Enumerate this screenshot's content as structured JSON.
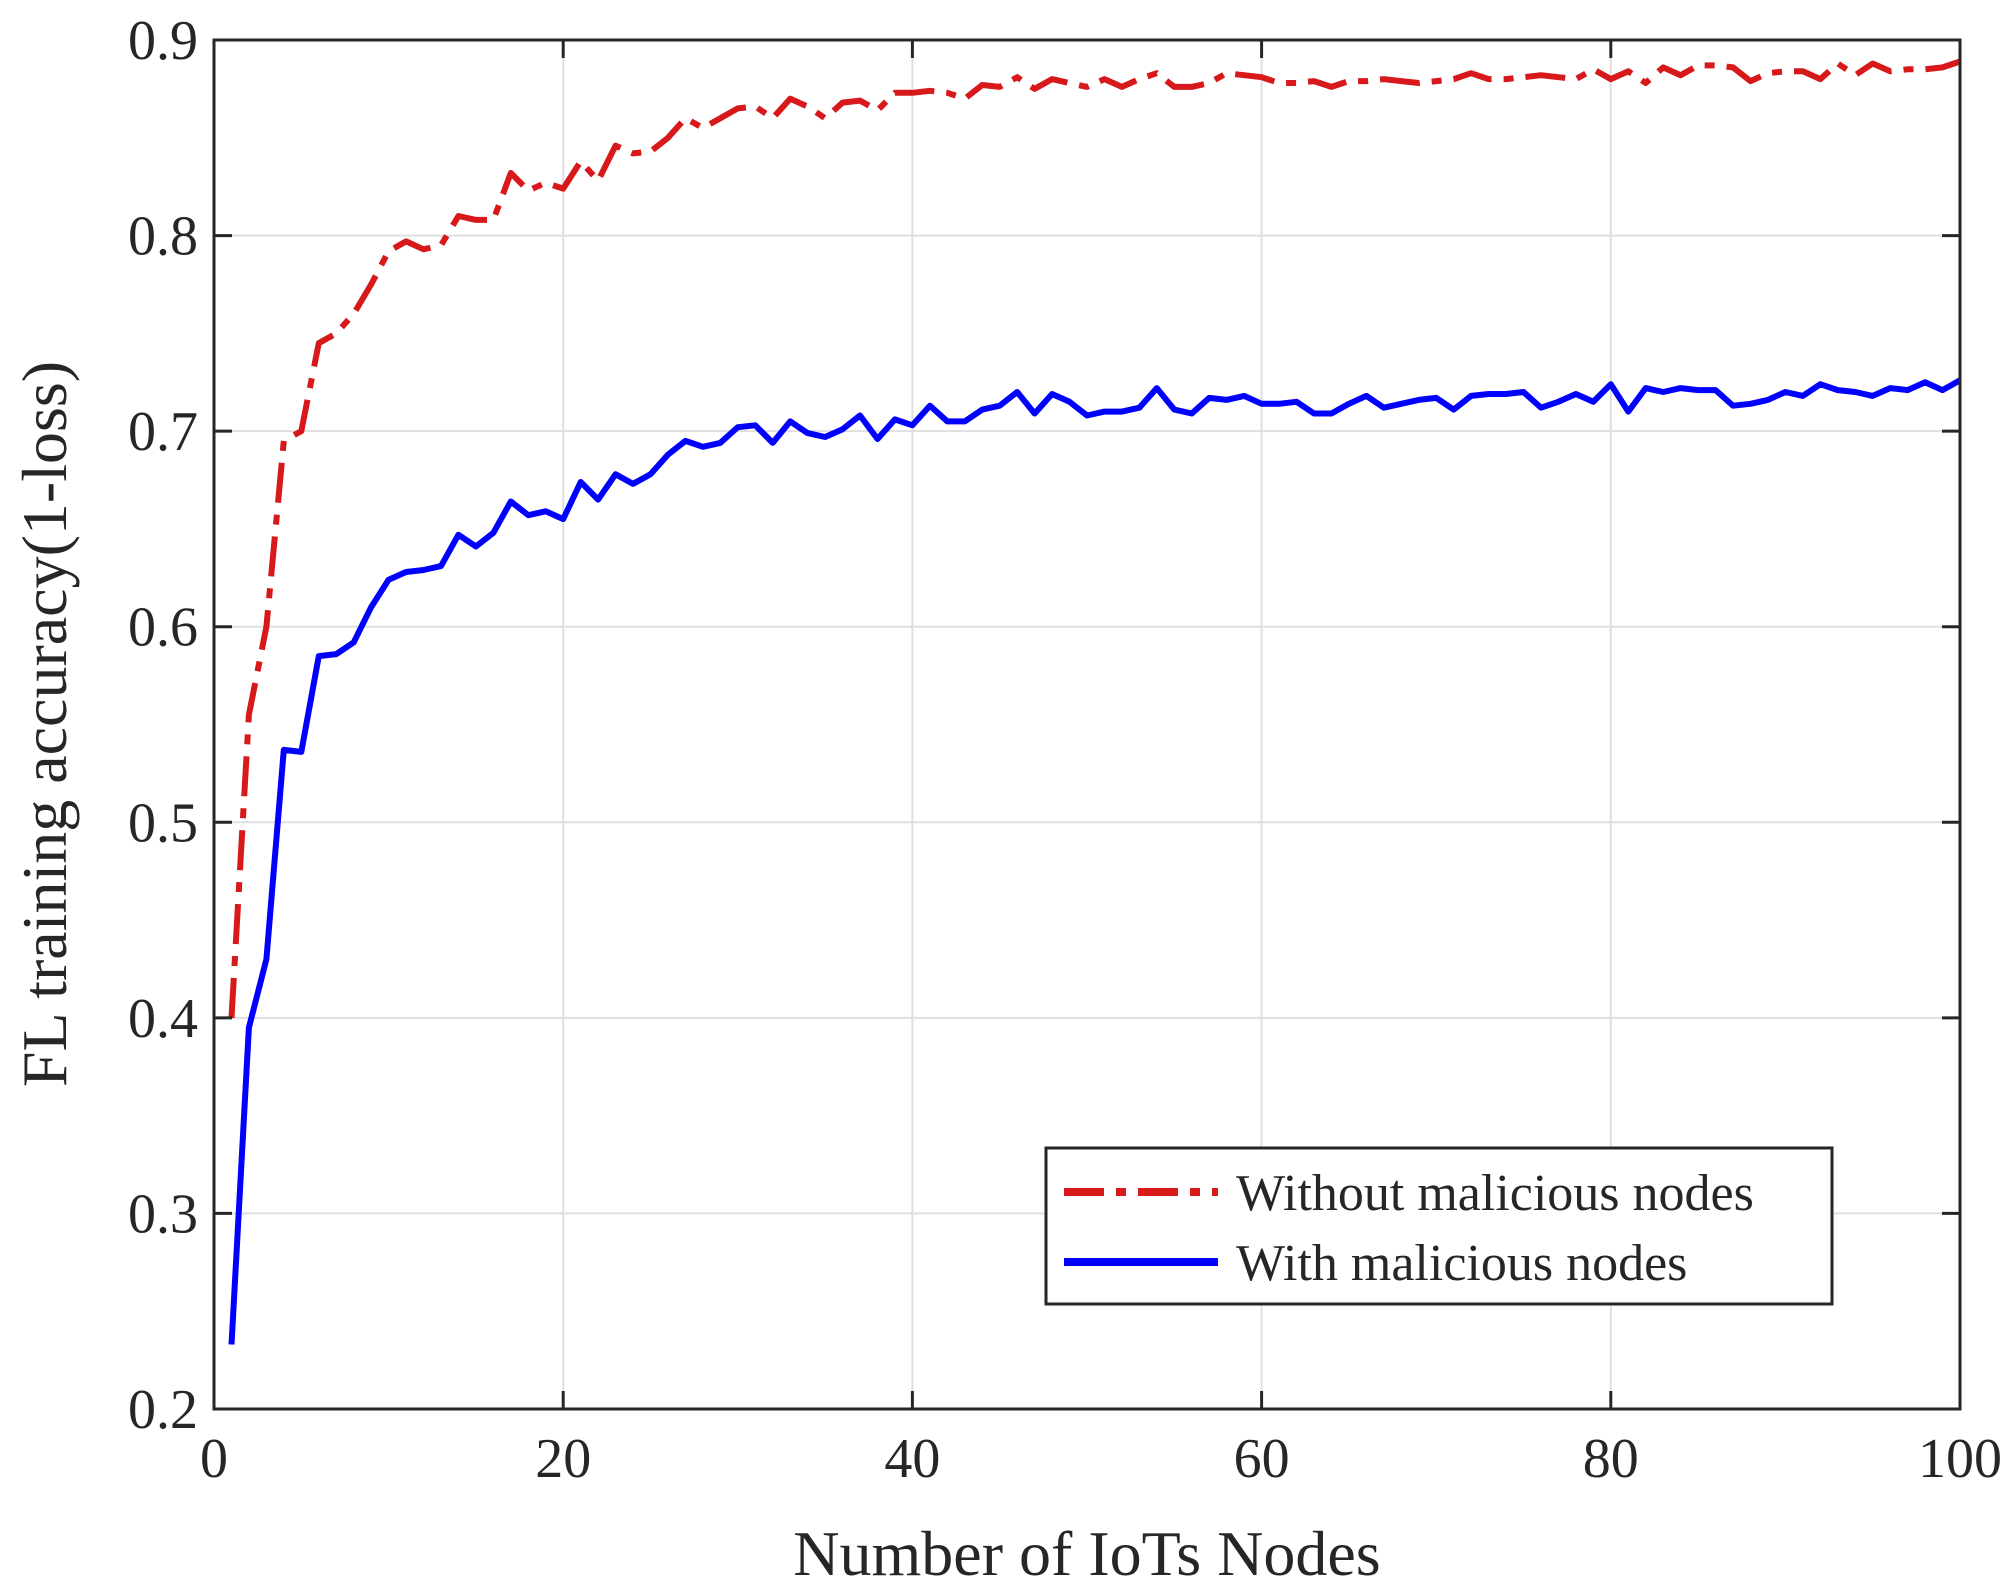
{
  "chart_data": {
    "type": "line",
    "xlabel": "Number of IoTs Nodes",
    "ylabel": "FL training accuracy(1-loss)",
    "xlim": [
      0,
      100
    ],
    "ylim": [
      0.2,
      0.9
    ],
    "xticks": [
      "0",
      "20",
      "40",
      "60",
      "80",
      "100"
    ],
    "yticks": [
      "0.2",
      "0.3",
      "0.4",
      "0.5",
      "0.6",
      "0.7",
      "0.8",
      "0.9"
    ],
    "grid": true,
    "legend_position": "bottom-right",
    "x": [
      1,
      2,
      3,
      4,
      5,
      6,
      7,
      8,
      9,
      10,
      11,
      12,
      13,
      14,
      15,
      16,
      17,
      18,
      19,
      20,
      21,
      22,
      23,
      24,
      25,
      26,
      27,
      28,
      29,
      30,
      31,
      32,
      33,
      34,
      35,
      36,
      37,
      38,
      39,
      40,
      41,
      42,
      43,
      44,
      45,
      46,
      47,
      48,
      49,
      50,
      51,
      52,
      53,
      54,
      55,
      56,
      57,
      58,
      59,
      60,
      61,
      62,
      63,
      64,
      65,
      66,
      67,
      68,
      69,
      70,
      71,
      72,
      73,
      74,
      75,
      76,
      77,
      78,
      79,
      80,
      81,
      82,
      83,
      84,
      85,
      86,
      87,
      88,
      89,
      90,
      91,
      92,
      93,
      94,
      95,
      96,
      97,
      98,
      99,
      100
    ],
    "series": [
      {
        "name": "Without malicious nodes",
        "color": "#d7191c",
        "style": "dashdot",
        "values": [
          0.4,
          0.555,
          0.6,
          0.695,
          0.7,
          0.745,
          0.75,
          0.76,
          0.775,
          0.792,
          0.797,
          0.793,
          0.795,
          0.81,
          0.808,
          0.808,
          0.832,
          0.823,
          0.827,
          0.824,
          0.838,
          0.828,
          0.846,
          0.842,
          0.843,
          0.85,
          0.86,
          0.855,
          0.86,
          0.865,
          0.866,
          0.86,
          0.87,
          0.866,
          0.86,
          0.868,
          0.869,
          0.864,
          0.873,
          0.873,
          0.874,
          0.873,
          0.87,
          0.877,
          0.876,
          0.881,
          0.875,
          0.88,
          0.878,
          0.876,
          0.88,
          0.876,
          0.88,
          0.883,
          0.876,
          0.876,
          0.878,
          0.883,
          0.882,
          0.881,
          0.878,
          0.878,
          0.879,
          0.876,
          0.879,
          0.879,
          0.88,
          0.879,
          0.878,
          0.879,
          0.88,
          0.883,
          0.88,
          0.88,
          0.881,
          0.882,
          0.881,
          0.88,
          0.885,
          0.88,
          0.884,
          0.878,
          0.886,
          0.882,
          0.887,
          0.887,
          0.886,
          0.879,
          0.883,
          0.884,
          0.884,
          0.88,
          0.888,
          0.882,
          0.888,
          0.884,
          0.885,
          0.885,
          0.886,
          0.889
        ]
      },
      {
        "name": "With malicious nodes",
        "color": "#0000ff",
        "style": "solid",
        "values": [
          0.233,
          0.395,
          0.43,
          0.537,
          0.536,
          0.585,
          0.586,
          0.592,
          0.61,
          0.624,
          0.628,
          0.629,
          0.631,
          0.647,
          0.641,
          0.648,
          0.664,
          0.657,
          0.659,
          0.655,
          0.674,
          0.665,
          0.678,
          0.673,
          0.678,
          0.688,
          0.695,
          0.692,
          0.694,
          0.702,
          0.703,
          0.694,
          0.705,
          0.699,
          0.697,
          0.701,
          0.708,
          0.696,
          0.706,
          0.703,
          0.713,
          0.705,
          0.705,
          0.711,
          0.713,
          0.72,
          0.709,
          0.719,
          0.715,
          0.708,
          0.71,
          0.71,
          0.712,
          0.722,
          0.711,
          0.709,
          0.717,
          0.716,
          0.718,
          0.714,
          0.714,
          0.715,
          0.709,
          0.709,
          0.714,
          0.718,
          0.712,
          0.714,
          0.716,
          0.717,
          0.711,
          0.718,
          0.719,
          0.719,
          0.72,
          0.712,
          0.715,
          0.719,
          0.715,
          0.724,
          0.71,
          0.722,
          0.72,
          0.722,
          0.721,
          0.721,
          0.713,
          0.714,
          0.716,
          0.72,
          0.718,
          0.724,
          0.721,
          0.72,
          0.718,
          0.722,
          0.721,
          0.725,
          0.721,
          0.726
        ]
      }
    ]
  }
}
